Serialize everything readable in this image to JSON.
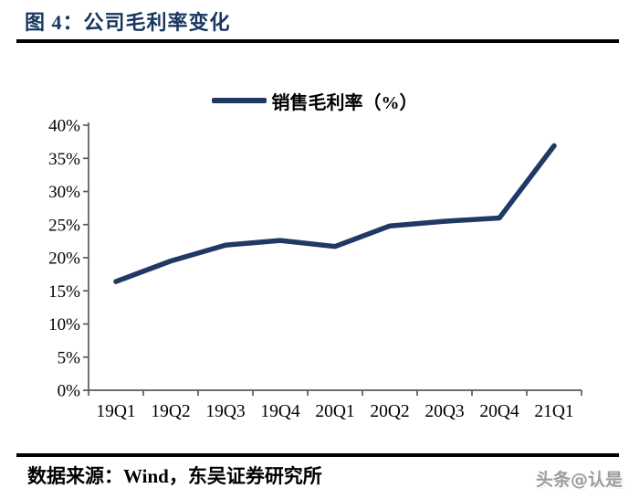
{
  "header": {
    "title": "图 4：公司毛利率变化"
  },
  "chart_data": {
    "type": "line",
    "title": "公司毛利率变化",
    "categories": [
      "19Q1",
      "19Q2",
      "19Q3",
      "19Q4",
      "20Q1",
      "20Q2",
      "20Q3",
      "20Q4",
      "21Q1"
    ],
    "series": [
      {
        "name": "销售毛利率（%）",
        "values": [
          16.4,
          19.5,
          21.9,
          22.6,
          21.7,
          24.8,
          25.5,
          26.0,
          36.9
        ]
      }
    ],
    "xlabel": "",
    "ylabel": "",
    "ylim": [
      0,
      40
    ],
    "y_tick_step": 5,
    "y_tick_labels": [
      "0%",
      "5%",
      "10%",
      "15%",
      "20%",
      "25%",
      "30%",
      "35%",
      "40%"
    ],
    "grid": false,
    "legend_position": "top-center",
    "line_color": "#1F3864",
    "axis_color": "#595959",
    "tick_label_color": "#000000"
  },
  "footer": {
    "source": "数据来源：Wind，东吴证券研究所",
    "watermark": "头条@认是"
  },
  "colors": {
    "title": "#17375E",
    "divider": "#000000",
    "line": "#1F3864",
    "axis": "#595959",
    "watermark": "#9C9C9C"
  }
}
